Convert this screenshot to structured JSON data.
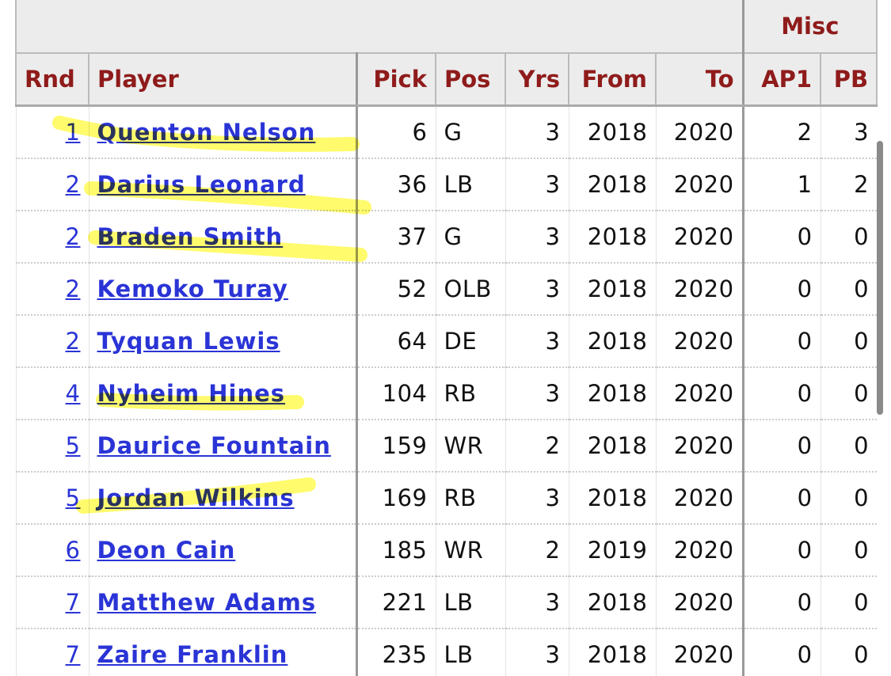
{
  "table": {
    "group_header": "Misc",
    "columns": [
      "Rnd",
      "Player",
      "Pick",
      "Pos",
      "Yrs",
      "From",
      "To",
      "AP1",
      "PB"
    ],
    "rows": [
      [
        1,
        "Quenton Nelson",
        6,
        "G",
        3,
        2018,
        2020,
        2,
        3
      ],
      [
        2,
        "Darius Leonard",
        36,
        "LB",
        3,
        2018,
        2020,
        1,
        2
      ],
      [
        2,
        "Braden Smith",
        37,
        "G",
        3,
        2018,
        2020,
        0,
        0
      ],
      [
        2,
        "Kemoko Turay",
        52,
        "OLB",
        3,
        2018,
        2020,
        0,
        0
      ],
      [
        2,
        "Tyquan Lewis",
        64,
        "DE",
        3,
        2018,
        2020,
        0,
        0
      ],
      [
        4,
        "Nyheim Hines",
        104,
        "RB",
        3,
        2018,
        2020,
        0,
        0
      ],
      [
        5,
        "Daurice Fountain",
        159,
        "WR",
        2,
        2018,
        2020,
        0,
        0
      ],
      [
        5,
        "Jordan Wilkins",
        169,
        "RB",
        3,
        2018,
        2020,
        0,
        0
      ],
      [
        6,
        "Deon Cain",
        185,
        "WR",
        2,
        2019,
        2020,
        0,
        0
      ],
      [
        7,
        "Matthew Adams",
        221,
        "LB",
        3,
        2018,
        2020,
        0,
        0
      ],
      [
        7,
        "Zaire Franklin",
        235,
        "LB",
        3,
        2018,
        2020,
        0,
        0
      ]
    ]
  }
}
